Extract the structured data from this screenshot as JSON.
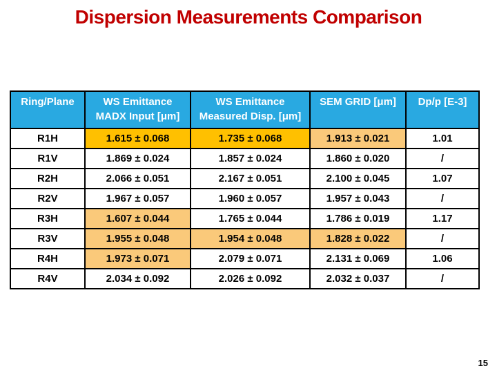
{
  "slide": {
    "title": "Dispersion Measurements Comparison",
    "page_number": "15"
  },
  "colors": {
    "title_text": "#C00000",
    "header_bg": "#29A9E1",
    "header_text": "#FFFFFF",
    "cell_text": "#000000",
    "border": "#000000",
    "highlight_gold": "#FFC000",
    "highlight_orange": "#FAC97A",
    "background": "#FFFFFF"
  },
  "table": {
    "headers": [
      {
        "line1": "Ring/Plane",
        "line2": ""
      },
      {
        "line1": "WS Emittance",
        "line2": "MADX Input [μm]"
      },
      {
        "line1": "WS Emittance",
        "line2": "Measured Disp. [μm]"
      },
      {
        "line1": "SEM GRID [μm]",
        "line2": ""
      },
      {
        "line1": "Dp/p [E-3]",
        "line2": ""
      }
    ],
    "rows": [
      {
        "label": "R1H",
        "cells": [
          {
            "text": "1.615 ± 0.068",
            "highlight": "gold"
          },
          {
            "text": "1.735 ± 0.068",
            "highlight": "gold"
          },
          {
            "text": "1.913 ± 0.021",
            "highlight": "orange"
          },
          {
            "text": "1.01",
            "highlight": "none"
          }
        ]
      },
      {
        "label": "R1V",
        "cells": [
          {
            "text": "1.869 ± 0.024",
            "highlight": "none"
          },
          {
            "text": "1.857 ± 0.024",
            "highlight": "none"
          },
          {
            "text": "1.860 ± 0.020",
            "highlight": "none"
          },
          {
            "text": "/",
            "highlight": "none"
          }
        ]
      },
      {
        "label": "R2H",
        "cells": [
          {
            "text": "2.066 ± 0.051",
            "highlight": "none"
          },
          {
            "text": "2.167 ± 0.051",
            "highlight": "none"
          },
          {
            "text": "2.100 ± 0.045",
            "highlight": "none"
          },
          {
            "text": "1.07",
            "highlight": "none"
          }
        ]
      },
      {
        "label": "R2V",
        "cells": [
          {
            "text": "1.967 ± 0.057",
            "highlight": "none"
          },
          {
            "text": "1.960 ± 0.057",
            "highlight": "none"
          },
          {
            "text": "1.957 ± 0.043",
            "highlight": "none"
          },
          {
            "text": "/",
            "highlight": "none"
          }
        ]
      },
      {
        "label": "R3H",
        "cells": [
          {
            "text": "1.607 ± 0.044",
            "highlight": "orange"
          },
          {
            "text": "1.765 ± 0.044",
            "highlight": "none"
          },
          {
            "text": "1.786 ± 0.019",
            "highlight": "none"
          },
          {
            "text": "1.17",
            "highlight": "none"
          }
        ]
      },
      {
        "label": "R3V",
        "cells": [
          {
            "text": "1.955 ± 0.048",
            "highlight": "orange"
          },
          {
            "text": "1.954 ± 0.048",
            "highlight": "orange"
          },
          {
            "text": "1.828 ± 0.022",
            "highlight": "orange"
          },
          {
            "text": "/",
            "highlight": "none"
          }
        ]
      },
      {
        "label": "R4H",
        "cells": [
          {
            "text": "1.973 ± 0.071",
            "highlight": "orange"
          },
          {
            "text": "2.079 ± 0.071",
            "highlight": "none"
          },
          {
            "text": "2.131 ± 0.069",
            "highlight": "none"
          },
          {
            "text": "1.06",
            "highlight": "none"
          }
        ]
      },
      {
        "label": "R4V",
        "cells": [
          {
            "text": "2.034 ± 0.092",
            "highlight": "none"
          },
          {
            "text": "2.026 ± 0.092",
            "highlight": "none"
          },
          {
            "text": "2.032 ± 0.037",
            "highlight": "none"
          },
          {
            "text": "/",
            "highlight": "none"
          }
        ]
      }
    ]
  }
}
